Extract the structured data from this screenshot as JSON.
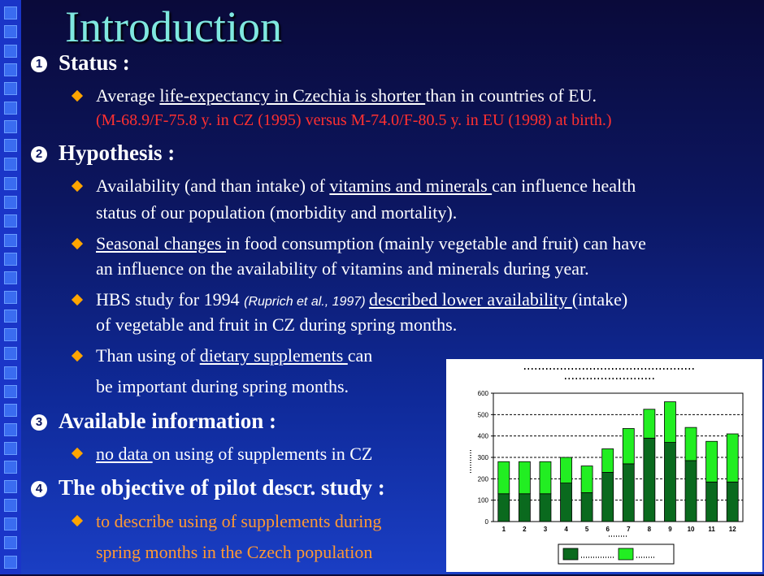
{
  "title": "Introduction",
  "sections": [
    {
      "num": "❶",
      "heading": "Status :"
    },
    {
      "num": "❷",
      "heading": "Hypothesis :"
    },
    {
      "num": "❸",
      "heading": "Available information :"
    },
    {
      "num": "❹",
      "heading": "The objective of pilot descr. study :"
    }
  ],
  "status": {
    "b1_a": "Average ",
    "b1_u": "life-expectancy in Czechia is shorter ",
    "b1_b": "than in countries of EU.",
    "b1_red": "(M-68.9/F-75.8 y. in CZ (1995) versus  M-74.0/F-80.5 y. in EU (1998) at birth.)"
  },
  "hypothesis": {
    "h1_a": "Availability (and than intake) of ",
    "h1_u": "vitamins and minerals ",
    "h1_b": "can influence health",
    "h1_c": "status of our population (morbidity and mortality).",
    "h2_u": "Seasonal changes ",
    "h2_a": "in food consumption (mainly vegetable and fruit) can have",
    "h2_b": "an influence on the availability of vitamins and minerals during year.",
    "h3_a": "HBS study for 1994 ",
    "h3_cite": "(Ruprich et al., 1997) ",
    "h3_u": "described lower availability ",
    "h3_b": "(intake)",
    "h3_c": "of vegetable and fruit in CZ during spring months.",
    "h4_a": "Than using of ",
    "h4_u": "dietary supplements ",
    "h4_b": "can",
    "h4_c": "be important during spring months."
  },
  "available": {
    "a1_u": "no data ",
    "a1_b": "on using of supplements in CZ"
  },
  "objective": {
    "o1_a": "to describe using of supplements during",
    "o1_b": "spring months in the Czech population"
  },
  "colors": {
    "dark_green": "#0a6a1e",
    "light_green": "#22ee22",
    "accent_orange": "#ff9933",
    "status_red": "#ff3030",
    "title_cyan": "#7fe8e0"
  },
  "chart_data": {
    "type": "bar",
    "stacked": true,
    "categories": [
      "1",
      "2",
      "3",
      "4",
      "5",
      "6",
      "7",
      "8",
      "9",
      "10",
      "11",
      "12"
    ],
    "series": [
      {
        "values": [
          130,
          130,
          130,
          180,
          135,
          230,
          270,
          390,
          370,
          285,
          185,
          185
        ]
      },
      {
        "values": [
          150,
          150,
          150,
          120,
          125,
          110,
          165,
          135,
          190,
          155,
          190,
          225
        ]
      }
    ],
    "ylim": [
      0,
      600
    ],
    "yticks": [
      0,
      100,
      200,
      300,
      400,
      500,
      600
    ],
    "grid": "horizontal",
    "legend": "bottom"
  }
}
